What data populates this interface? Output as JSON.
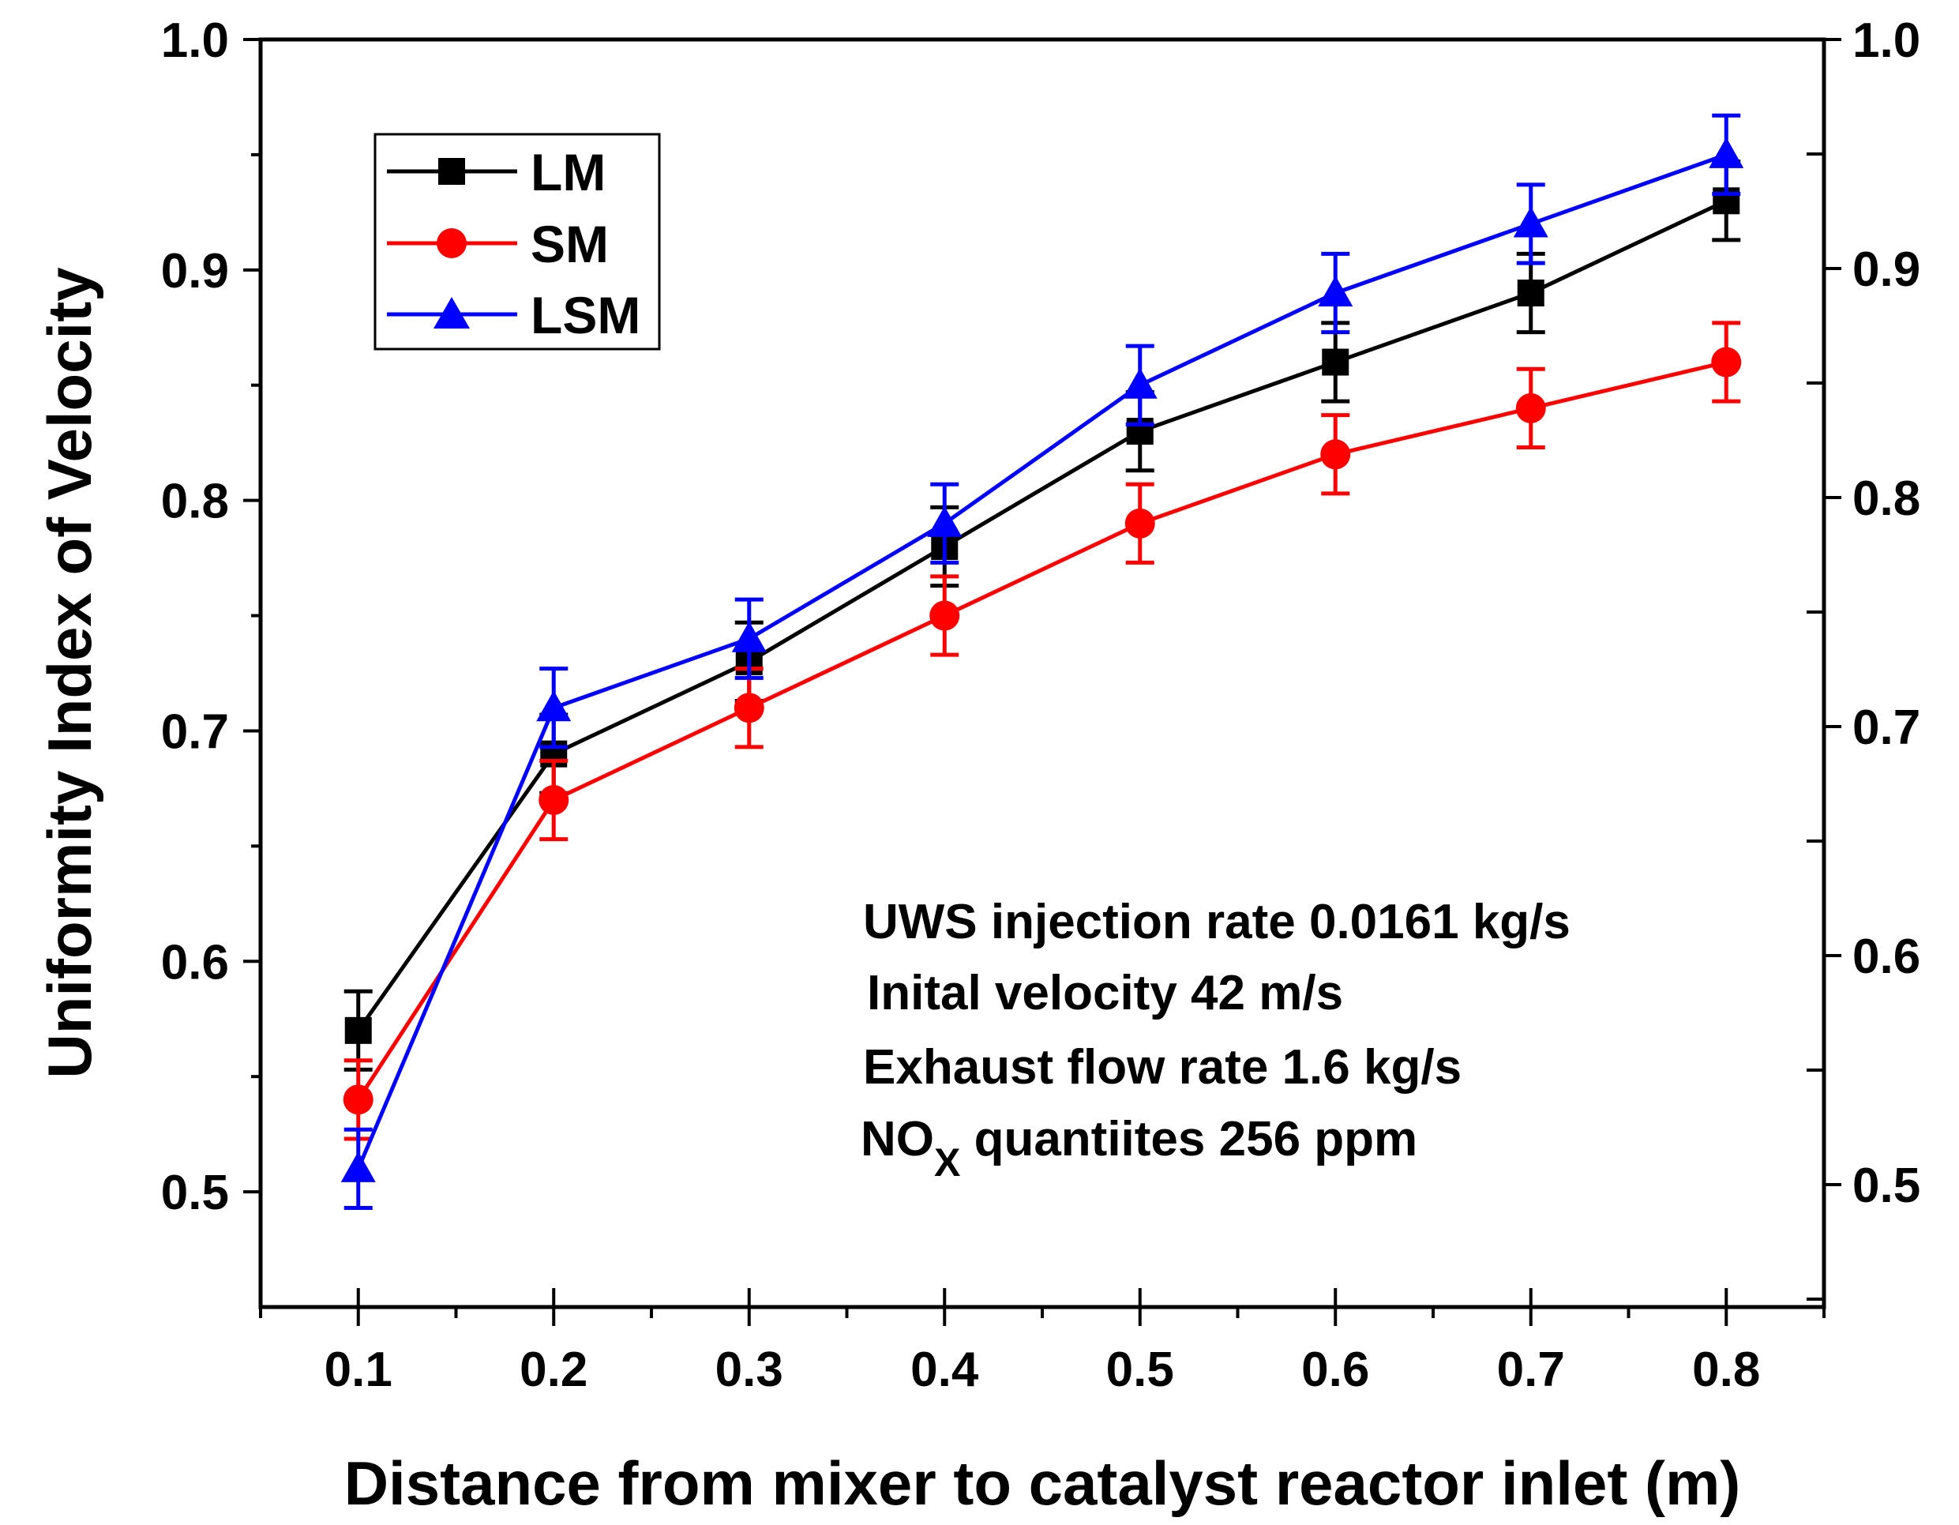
{
  "chart_data": {
    "type": "line",
    "title": "",
    "xlabel": "Distance from mixer to catalyst reactor inlet (m)",
    "ylabel": "Uniformity Index of Velocity",
    "x": [
      0.1,
      0.2,
      0.3,
      0.4,
      0.5,
      0.6,
      0.7,
      0.8
    ],
    "x_tick_labels": [
      "0.1",
      "0.2",
      "0.3",
      "0.4",
      "0.5",
      "0.6",
      "0.7",
      "0.8"
    ],
    "xlim": [
      0.05,
      0.85
    ],
    "ylim": [
      0.45,
      1.0
    ],
    "y_tick_labels": [
      "0.5",
      "0.6",
      "0.7",
      "0.8",
      "0.9",
      "1.0"
    ],
    "right_y_tick_labels": [
      "0.5",
      "0.6",
      "0.7",
      "0.8",
      "0.9",
      "1.0"
    ],
    "legend_position": "top-left",
    "grid": false,
    "series": [
      {
        "name": "LM",
        "color": "#000000",
        "marker": "square",
        "values": [
          0.57,
          0.69,
          0.73,
          0.78,
          0.83,
          0.86,
          0.89,
          0.93
        ],
        "errors": [
          0.017,
          0.017,
          0.017,
          0.017,
          0.017,
          0.017,
          0.017,
          0.017
        ]
      },
      {
        "name": "SM",
        "color": "#ff0000",
        "marker": "circle",
        "values": [
          0.54,
          0.67,
          0.71,
          0.75,
          0.79,
          0.82,
          0.84,
          0.86
        ],
        "errors": [
          0.017,
          0.017,
          0.017,
          0.017,
          0.017,
          0.017,
          0.017,
          0.017
        ]
      },
      {
        "name": "LSM",
        "color": "#0000ff",
        "marker": "triangle",
        "values": [
          0.51,
          0.71,
          0.74,
          0.79,
          0.85,
          0.89,
          0.92,
          0.95
        ],
        "errors": [
          0.017,
          0.017,
          0.017,
          0.017,
          0.017,
          0.017,
          0.017,
          0.017
        ]
      }
    ],
    "annotations": {
      "line1": "UWS injection rate 0.0161 kg/s",
      "line2": "Inital velocity 42 m/s",
      "line3": "Exhaust flow rate 1.6 kg/s",
      "line4_main": "NO",
      "line4_sub": "X",
      "line4_rest": " quantiites 256 ppm"
    }
  }
}
